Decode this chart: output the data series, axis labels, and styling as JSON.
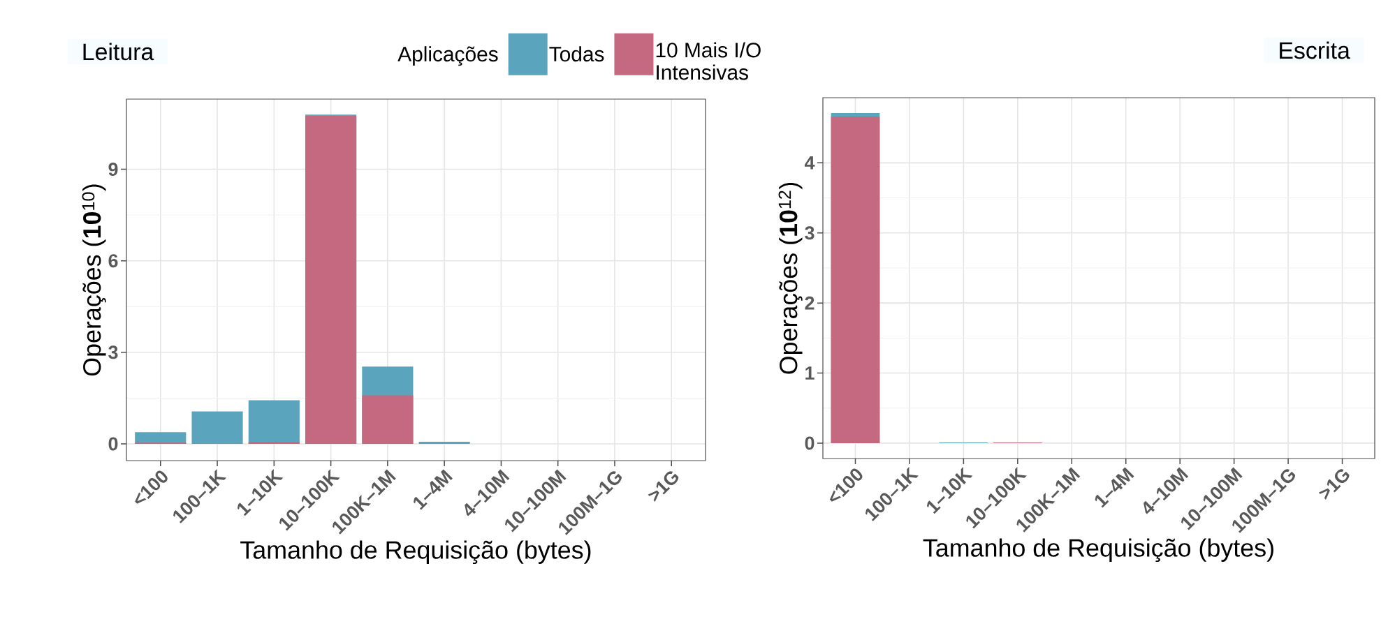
{
  "chart_data": [
    {
      "type": "bar",
      "title": "Leitura",
      "xlabel": "Tamanho de Requisição (bytes)",
      "ylabel": "Operações (**10**$^{10}$)",
      "legend_title": "Aplicações",
      "categories": [
        "<100",
        "100–1K",
        "1–10K",
        "10–100K",
        "100K–1M",
        "1–4M",
        "4–10M",
        "10–100M",
        "100M–1G",
        ">1G"
      ],
      "series": [
        {
          "name": "Todas",
          "color": "#5aa5bd",
          "values": [
            0.38,
            1.06,
            1.43,
            10.79,
            2.53,
            0.07,
            0,
            0,
            0,
            0
          ]
        },
        {
          "name": "10 Mais I/O Intensivas",
          "color": "#c4697f",
          "values": [
            0.04,
            0,
            0.07,
            10.75,
            1.59,
            0,
            0,
            0,
            0,
            0
          ]
        }
      ],
      "ylim": [
        -0.55,
        11.3
      ],
      "yticks": [
        0,
        3,
        6,
        9
      ],
      "grid": true,
      "legend": "top"
    },
    {
      "type": "bar",
      "title": "Escrita",
      "xlabel": "Tamanho de Requisição (bytes)",
      "ylabel": "Operações (**10**$^{12}$)",
      "categories": [
        "<100",
        "100–1K",
        "1–10K",
        "10–100K",
        "100K–1M",
        "1–4M",
        "4–10M",
        "10–100M",
        "100M–1G",
        ">1G"
      ],
      "series": [
        {
          "color": "#5aa5bd",
          "values": [
            4.71,
            0,
            0.01,
            null,
            0,
            0,
            0,
            0,
            0,
            0
          ]
        },
        {
          "color": "#c4697f",
          "values": [
            4.66,
            0,
            0,
            0.01,
            0,
            0,
            0,
            0,
            0,
            0
          ]
        }
      ],
      "ylim": [
        -0.22,
        4.93
      ],
      "yticks": [
        0,
        1,
        2,
        3,
        4
      ],
      "grid": true
    }
  ]
}
